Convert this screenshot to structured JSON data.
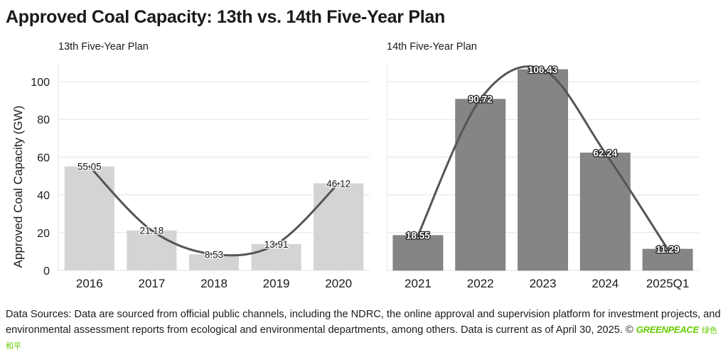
{
  "title": "Approved Coal Capacity: 13th vs. 14th Five-Year Plan",
  "footer": {
    "text": "Data Sources: Data are sourced from official public channels, including the NDRC, the online approval and supervision platform for investment projects, and environmental assessment reports from ecological and environmental departments, among others. Data is current as of April 30, 2025. ©",
    "logo_text": "GREENPEACE",
    "logo_cn": "绿色和平"
  },
  "colors": {
    "bar_13th": "#d4d4d4",
    "bar_14th": "#858585",
    "trend_line": "#555555",
    "grid": "#e3e3e3",
    "brand_green": "#66cc00"
  },
  "chart_data": [
    {
      "type": "bar",
      "title": "13th Five-Year Plan",
      "ylabel": "Approved Coal Capacity (GW)",
      "xlabel": "",
      "categories": [
        "2016",
        "2017",
        "2018",
        "2019",
        "2020"
      ],
      "values": [
        55.05,
        21.18,
        8.53,
        13.91,
        46.12
      ],
      "data_labels": [
        "55.05",
        "21.18",
        "8.53",
        "13.91",
        "46.12"
      ],
      "ylim": [
        0,
        110
      ],
      "yticks": [
        0,
        20,
        40,
        60,
        80,
        100
      ],
      "grid": true,
      "trend_line": true
    },
    {
      "type": "bar",
      "title": "14th Five-Year Plan",
      "ylabel": "",
      "xlabel": "",
      "categories": [
        "2021",
        "2022",
        "2023",
        "2024",
        "2025Q1"
      ],
      "values": [
        18.55,
        90.72,
        106.43,
        62.24,
        11.29
      ],
      "data_labels": [
        "18.55",
        "90.72",
        "106.43",
        "62.24",
        "11.29"
      ],
      "ylim": [
        0,
        110
      ],
      "yticks": [
        0,
        20,
        40,
        60,
        80,
        100
      ],
      "grid": true,
      "trend_line": true
    }
  ]
}
